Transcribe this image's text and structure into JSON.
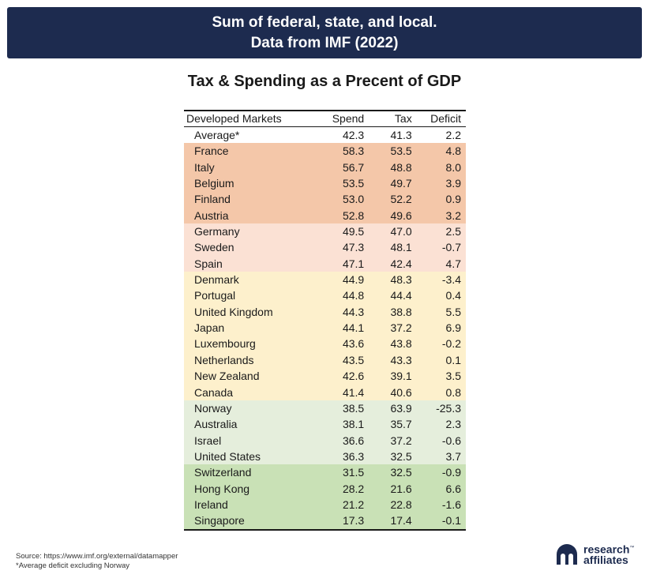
{
  "banner": {
    "line1": "Sum of federal, state, and local.",
    "line2": "Data from IMF (2022)"
  },
  "chart_data": {
    "type": "table",
    "title": "Tax & Spending as a Precent of GDP",
    "columns": [
      "Developed Markets",
      "Spend",
      "Tax",
      "Deficit"
    ],
    "rows": [
      {
        "name": "Average*",
        "spend": "42.3",
        "tax": "41.3",
        "deficit": "2.2",
        "group": "avg"
      },
      {
        "name": "France",
        "spend": "58.3",
        "tax": "53.5",
        "deficit": "4.8",
        "group": "g1"
      },
      {
        "name": "Italy",
        "spend": "56.7",
        "tax": "48.8",
        "deficit": "8.0",
        "group": "g1"
      },
      {
        "name": "Belgium",
        "spend": "53.5",
        "tax": "49.7",
        "deficit": "3.9",
        "group": "g1"
      },
      {
        "name": "Finland",
        "spend": "53.0",
        "tax": "52.2",
        "deficit": "0.9",
        "group": "g1"
      },
      {
        "name": "Austria",
        "spend": "52.8",
        "tax": "49.6",
        "deficit": "3.2",
        "group": "g1"
      },
      {
        "name": "Germany",
        "spend": "49.5",
        "tax": "47.0",
        "deficit": "2.5",
        "group": "g2"
      },
      {
        "name": "Sweden",
        "spend": "47.3",
        "tax": "48.1",
        "deficit": "-0.7",
        "group": "g2"
      },
      {
        "name": "Spain",
        "spend": "47.1",
        "tax": "42.4",
        "deficit": "4.7",
        "group": "g2"
      },
      {
        "name": "Denmark",
        "spend": "44.9",
        "tax": "48.3",
        "deficit": "-3.4",
        "group": "g3"
      },
      {
        "name": "Portugal",
        "spend": "44.8",
        "tax": "44.4",
        "deficit": "0.4",
        "group": "g3"
      },
      {
        "name": "United Kingdom",
        "spend": "44.3",
        "tax": "38.8",
        "deficit": "5.5",
        "group": "g3"
      },
      {
        "name": "Japan",
        "spend": "44.1",
        "tax": "37.2",
        "deficit": "6.9",
        "group": "g3"
      },
      {
        "name": "Luxembourg",
        "spend": "43.6",
        "tax": "43.8",
        "deficit": "-0.2",
        "group": "g3"
      },
      {
        "name": "Netherlands",
        "spend": "43.5",
        "tax": "43.3",
        "deficit": "0.1",
        "group": "g3"
      },
      {
        "name": "New Zealand",
        "spend": "42.6",
        "tax": "39.1",
        "deficit": "3.5",
        "group": "g3"
      },
      {
        "name": "Canada",
        "spend": "41.4",
        "tax": "40.6",
        "deficit": "0.8",
        "group": "g3"
      },
      {
        "name": "Norway",
        "spend": "38.5",
        "tax": "63.9",
        "deficit": "-25.3",
        "group": "g4"
      },
      {
        "name": "Australia",
        "spend": "38.1",
        "tax": "35.7",
        "deficit": "2.3",
        "group": "g4"
      },
      {
        "name": "Israel",
        "spend": "36.6",
        "tax": "37.2",
        "deficit": "-0.6",
        "group": "g4"
      },
      {
        "name": "United States",
        "spend": "36.3",
        "tax": "32.5",
        "deficit": "3.7",
        "group": "g4"
      },
      {
        "name": "Switzerland",
        "spend": "31.5",
        "tax": "32.5",
        "deficit": "-0.9",
        "group": "g5"
      },
      {
        "name": "Hong Kong",
        "spend": "28.2",
        "tax": "21.6",
        "deficit": "6.6",
        "group": "g5"
      },
      {
        "name": "Ireland",
        "spend": "21.2",
        "tax": "22.8",
        "deficit": "-1.6",
        "group": "g5"
      },
      {
        "name": "Singapore",
        "spend": "17.3",
        "tax": "17.4",
        "deficit": "-0.1",
        "group": "g5"
      }
    ],
    "group_colors": {
      "avg": "#ffffff",
      "g1": "#f4c7a9",
      "g2": "#fbe1d4",
      "g3": "#fdf0cc",
      "g4": "#e5eedc",
      "g5": "#c9e1b6"
    }
  },
  "footer": {
    "source": "Source: https://www.imf.org/external/datamapper",
    "note": "*Average deficit excluding Norway"
  },
  "logo": {
    "line1": "research",
    "line2": "affiliates",
    "tm": "™",
    "icon": "research-affiliates-logo-icon"
  },
  "colors": {
    "banner": "#1d2b4f"
  }
}
